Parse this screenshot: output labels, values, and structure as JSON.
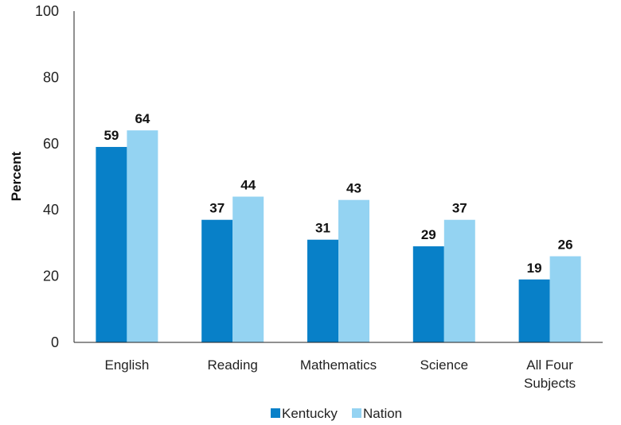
{
  "chart_data": {
    "type": "bar",
    "title": "",
    "xlabel": "",
    "ylabel": "Percent",
    "ylim": [
      0,
      100
    ],
    "yticks": [
      "0",
      "20",
      "40",
      "60",
      "80",
      "100"
    ],
    "grid": false,
    "legend_position": "bottom",
    "categories": [
      [
        "English"
      ],
      [
        "Reading"
      ],
      [
        "Mathematics"
      ],
      [
        "Science"
      ],
      [
        "All Four",
        "Subjects"
      ]
    ],
    "series": [
      {
        "name": "Kentucky",
        "color": "#0880c8",
        "values": [
          59,
          37,
          31,
          29,
          19
        ]
      },
      {
        "name": "Nation",
        "color": "#94d3f2",
        "values": [
          64,
          44,
          43,
          37,
          26
        ]
      }
    ]
  }
}
